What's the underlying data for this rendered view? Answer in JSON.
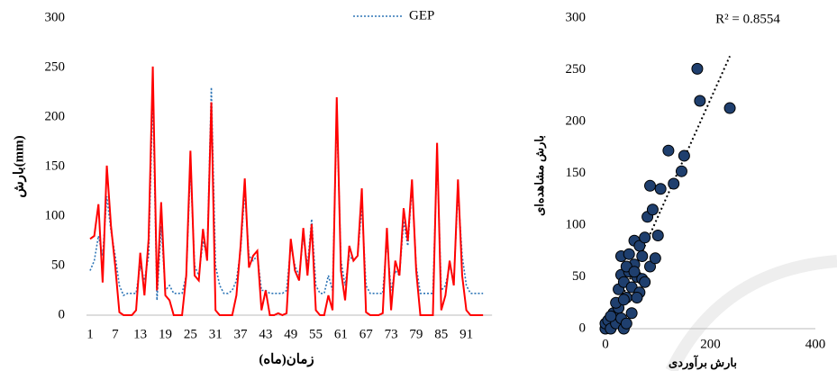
{
  "chart_data": [
    {
      "type": "line",
      "title_legend_position": "top",
      "x_label": "زمان(ماه)",
      "y_label": "بارش(mm)",
      "categories": [
        1,
        null,
        null,
        null,
        null,
        null,
        7,
        null,
        null,
        null,
        null,
        null,
        13,
        null,
        null,
        null,
        null,
        null,
        19,
        null,
        null,
        null,
        null,
        null,
        25,
        null,
        null,
        null,
        null,
        null,
        31,
        null,
        null,
        null,
        null,
        null,
        37,
        null,
        null,
        null,
        null,
        null,
        43,
        null,
        null,
        null,
        null,
        null,
        49,
        null,
        null,
        null,
        null,
        null,
        55,
        null,
        null,
        null,
        null,
        null,
        61,
        null,
        null,
        null,
        null,
        null,
        67,
        null,
        null,
        null,
        null,
        null,
        73,
        null,
        null,
        null,
        null,
        null,
        79,
        null,
        null,
        null,
        null,
        null,
        85,
        null,
        null,
        null,
        null,
        null,
        91,
        null,
        null,
        null,
        null
      ],
      "series": [
        {
          "color": "#ff0000",
          "values": [
            77,
            80,
            112,
            33,
            151,
            90,
            50,
            3,
            0,
            0,
            0,
            5,
            63,
            20,
            77,
            251,
            25,
            114,
            20,
            15,
            0,
            0,
            0,
            40,
            166,
            40,
            35,
            87,
            55,
            215,
            5,
            0,
            0,
            0,
            0,
            20,
            70,
            138,
            48,
            60,
            65,
            5,
            25,
            0,
            0,
            2,
            0,
            2,
            77,
            45,
            35,
            88,
            40,
            92,
            5,
            0,
            0,
            20,
            5,
            220,
            45,
            15,
            70,
            55,
            60,
            128,
            3,
            0,
            0,
            0,
            2,
            88,
            5,
            55,
            40,
            108,
            75,
            137,
            45,
            0,
            0,
            0,
            0,
            174,
            5,
            20,
            55,
            30,
            137,
            40,
            5,
            0,
            0,
            0,
            0
          ]
        },
        {
          "name": "GEP",
          "color": "#2e75b6",
          "dashed": true,
          "values": [
            45,
            55,
            80,
            60,
            120,
            85,
            60,
            30,
            20,
            22,
            22,
            22,
            50,
            35,
            60,
            225,
            15,
            90,
            25,
            30,
            22,
            22,
            22,
            40,
            150,
            50,
            40,
            75,
            60,
            230,
            50,
            30,
            22,
            22,
            25,
            35,
            65,
            125,
            60,
            55,
            60,
            25,
            25,
            22,
            22,
            22,
            22,
            25,
            70,
            50,
            40,
            80,
            50,
            97,
            30,
            22,
            22,
            40,
            25,
            205,
            55,
            30,
            60,
            55,
            60,
            110,
            30,
            22,
            22,
            22,
            22,
            75,
            25,
            45,
            40,
            95,
            70,
            130,
            50,
            22,
            22,
            22,
            22,
            160,
            25,
            30,
            50,
            35,
            125,
            60,
            30,
            22,
            22,
            22,
            22
          ]
        }
      ],
      "ylim": [
        0,
        300
      ],
      "yticks": [
        0,
        50,
        100,
        150,
        200,
        250,
        300
      ]
    },
    {
      "type": "scatter",
      "annotation": "R² = 0.8554",
      "x_label": "بارش برآوردی",
      "y_label": "بارش مشاهده‌ای",
      "color": "#1f3f6e",
      "trendline": true,
      "x": [
        0,
        0,
        5,
        10,
        15,
        20,
        25,
        30,
        35,
        40,
        20,
        25,
        30,
        35,
        40,
        45,
        50,
        55,
        60,
        65,
        70,
        30,
        45,
        55,
        65,
        70,
        75,
        80,
        90,
        100,
        85,
        105,
        130,
        145,
        120,
        150,
        180,
        175,
        237,
        40,
        50,
        10,
        60,
        75,
        55,
        35,
        85,
        95
      ],
      "values": [
        0,
        5,
        8,
        0,
        15,
        5,
        20,
        10,
        0,
        5,
        25,
        38,
        52,
        45,
        30,
        55,
        40,
        62,
        50,
        35,
        48,
        70,
        72,
        85,
        80,
        70,
        88,
        108,
        115,
        90,
        138,
        135,
        140,
        152,
        172,
        167,
        220,
        251,
        213,
        60,
        15,
        12,
        30,
        45,
        55,
        28,
        60,
        68
      ],
      "xlim": [
        0,
        400
      ],
      "xticks": [
        0,
        200,
        400
      ],
      "ylim": [
        0,
        300
      ],
      "yticks": [
        0,
        50,
        100,
        150,
        200,
        250,
        300
      ]
    }
  ]
}
